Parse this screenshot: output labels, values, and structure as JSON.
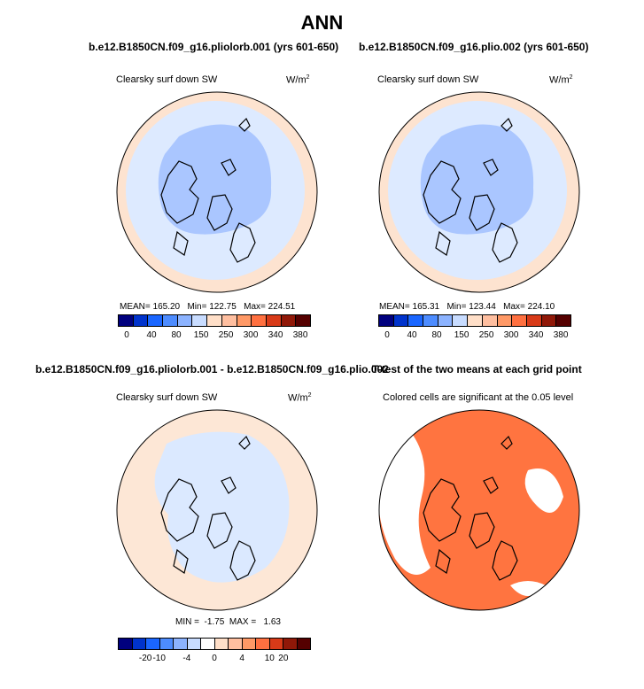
{
  "title": "ANN",
  "colors": {
    "sw_scale": [
      "#00007e",
      "#0033cc",
      "#1a66ff",
      "#4d8cff",
      "#8cb3ff",
      "#c8dcff",
      "#ffdfc8",
      "#ffbfa0",
      "#ff9966",
      "#ff7040",
      "#d83a18",
      "#901808",
      "#550000"
    ],
    "diff_scale": [
      "#00007e",
      "#0033cc",
      "#1a66ff",
      "#4d8cff",
      "#8cb3ff",
      "#c8dcff",
      "#ffffff",
      "#ffdfc8",
      "#ffbfa0",
      "#ff9966",
      "#ff7040",
      "#d83a18",
      "#901808",
      "#550000"
    ],
    "ocean_light": "#ddeaff",
    "polar_blue": "#aac6ff",
    "edge_orange": "#fde3d0",
    "diff_ocean": "#fde7d6",
    "diff_blue": "#dbe9ff",
    "sig_orange": "#ff7440"
  },
  "chart_data": [
    {
      "type": "heatmap",
      "projection": "north-polar-stereographic",
      "case_title": "b.e12.B1850CN.f09_g16.pliolorb.001 (yrs 601-650)",
      "variable": "Clearsky surf down SW",
      "units": "W/m",
      "units_exp": "2",
      "stats": {
        "mean": "165.20",
        "min": "122.75",
        "max": "224.51"
      },
      "colorbar_ticks": [
        "0",
        "40",
        "80",
        "150",
        "250",
        "300",
        "340",
        "380"
      ]
    },
    {
      "type": "heatmap",
      "projection": "north-polar-stereographic",
      "case_title": "b.e12.B1850CN.f09_g16.plio.002 (yrs 601-650)",
      "variable": "Clearsky surf down SW",
      "units": "W/m",
      "units_exp": "2",
      "stats": {
        "mean": "165.31",
        "min": "123.44",
        "max": "224.10"
      },
      "colorbar_ticks": [
        "0",
        "40",
        "80",
        "150",
        "250",
        "300",
        "340",
        "380"
      ]
    },
    {
      "type": "heatmap",
      "projection": "north-polar-stereographic",
      "case_title": "b.e12.B1850CN.f09_g16.pliolorb.001 - b.e12.B1850CN.f09_g16.plio.002",
      "variable": "Clearsky surf down SW",
      "units": "W/m",
      "units_exp": "2",
      "stats": {
        "min": "-1.75",
        "max": "1.63"
      },
      "colorbar_ticks": [
        "-20",
        "-10",
        "-4",
        "0",
        "4",
        "10",
        "20"
      ]
    },
    {
      "type": "heatmap",
      "projection": "north-polar-stereographic",
      "case_title": "T-test of the two means at each grid point",
      "subtitle": "Colored cells are significant at the 0.05 level"
    }
  ],
  "labels": {
    "mean": "MEAN=",
    "min": "Min=",
    "max": "Max=",
    "min_caps": "MIN =",
    "max_caps": "MAX ="
  }
}
